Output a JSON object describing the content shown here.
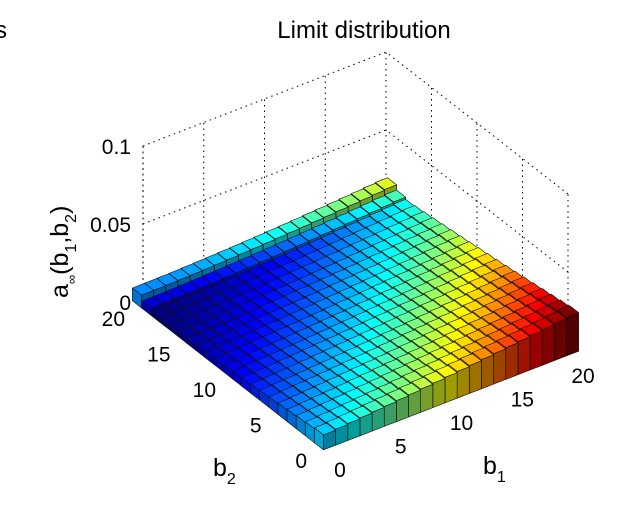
{
  "chart_data": {
    "type": "bar3d",
    "title": "Limit distribution",
    "clipped_left_text": "s",
    "xlabel": "b",
    "xlabel_sub": "1",
    "ylabel": "b",
    "ylabel_sub": "2",
    "zlabel": {
      "prefix": "a",
      "prefix_sub": "∞",
      "open": "(b",
      "sub1": "1",
      "mid": ",b",
      "sub2": "2",
      "close": ")"
    },
    "x_ticks": [
      0,
      5,
      10,
      15,
      20
    ],
    "y_ticks": [
      0,
      5,
      10,
      15,
      20
    ],
    "z_ticks": [
      "0",
      "0.05",
      "0.1"
    ],
    "xlim": [
      0,
      20
    ],
    "ylim": [
      0,
      20
    ],
    "zlim": [
      0,
      0.1
    ],
    "grid": true,
    "colormap": "jet",
    "value_model": "a∞(b1,b2) ≈ 0.0022 + 0.0225·((b1 + 20 − b2)/40)^1.6, with a raised ridge at the far edge b2 = 20",
    "colors": {
      "grid": "#000000",
      "edge": "#111111",
      "background": "#ffffff"
    }
  }
}
